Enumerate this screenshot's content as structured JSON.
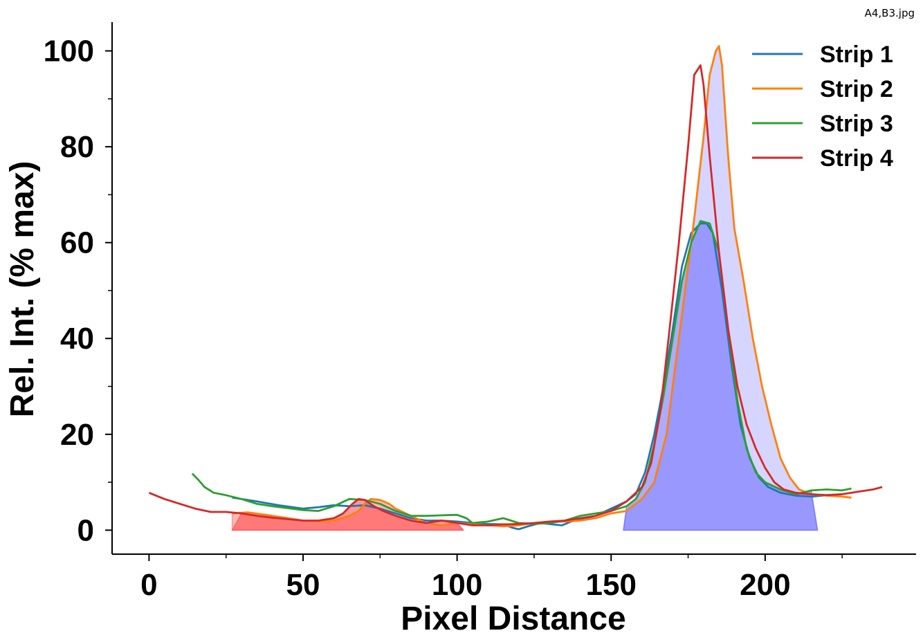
{
  "file_label": "A4,B3.jpg",
  "chart_data": {
    "type": "line",
    "title": "",
    "xlabel": "Pixel Distance",
    "ylabel": "Rel. Int. (% max)",
    "xlim": [
      -12,
      249
    ],
    "ylim": [
      -5,
      106
    ],
    "xticks": [
      0,
      50,
      100,
      150,
      200
    ],
    "yticks": [
      0,
      20,
      40,
      60,
      80,
      100
    ],
    "xminor": [
      25,
      75,
      125,
      175,
      225
    ],
    "yminor": [
      10,
      30,
      50,
      70,
      90
    ],
    "grid": false,
    "legend": {
      "position": "top-right"
    },
    "series": [
      {
        "name": "Strip 1",
        "color": "#1f77b4",
        "points": [
          [
            27,
            6.8
          ],
          [
            35,
            6.0
          ],
          [
            42,
            5.2
          ],
          [
            50,
            4.5
          ],
          [
            55,
            4.8
          ],
          [
            60,
            5.2
          ],
          [
            65,
            5.0
          ],
          [
            70,
            5.2
          ],
          [
            75,
            4.5
          ],
          [
            80,
            3.5
          ],
          [
            85,
            2.5
          ],
          [
            90,
            2.0
          ],
          [
            95,
            2.0
          ],
          [
            100,
            1.8
          ],
          [
            105,
            1.5
          ],
          [
            110,
            1.3
          ],
          [
            115,
            1.2
          ],
          [
            118,
            0.5
          ],
          [
            120,
            0.2
          ],
          [
            123,
            0.8
          ],
          [
            127,
            1.5
          ],
          [
            131,
            1.2
          ],
          [
            134,
            1.0
          ],
          [
            137,
            1.8
          ],
          [
            140,
            2.2
          ],
          [
            145,
            3.0
          ],
          [
            150,
            4.5
          ],
          [
            155,
            6.0
          ],
          [
            158,
            7.5
          ],
          [
            161,
            12
          ],
          [
            164,
            20
          ],
          [
            167,
            30
          ],
          [
            170,
            42
          ],
          [
            173,
            55
          ],
          [
            176,
            62
          ],
          [
            179,
            64
          ],
          [
            181,
            64
          ],
          [
            183,
            62
          ],
          [
            186,
            50
          ],
          [
            189,
            35
          ],
          [
            192,
            22
          ],
          [
            195,
            15
          ],
          [
            198,
            11
          ],
          [
            201,
            9
          ],
          [
            205,
            7.8
          ],
          [
            210,
            7.2
          ],
          [
            215,
            7.0
          ],
          [
            220,
            7.3
          ],
          [
            225,
            7.5
          ]
        ]
      },
      {
        "name": "Strip 2",
        "color": "#ff7f0e",
        "points": [
          [
            27,
            3.5
          ],
          [
            32,
            3.7
          ],
          [
            38,
            3.2
          ],
          [
            45,
            2.5
          ],
          [
            50,
            2.0
          ],
          [
            55,
            1.8
          ],
          [
            60,
            2.0
          ],
          [
            65,
            3.0
          ],
          [
            68,
            4.0
          ],
          [
            70,
            5.5
          ],
          [
            72,
            6.5
          ],
          [
            75,
            6.3
          ],
          [
            78,
            5.5
          ],
          [
            80,
            4.5
          ],
          [
            85,
            3.0
          ],
          [
            90,
            1.5
          ],
          [
            95,
            1.0
          ],
          [
            100,
            1.5
          ],
          [
            105,
            1.2
          ],
          [
            110,
            1.0
          ],
          [
            115,
            0.8
          ],
          [
            120,
            1.0
          ],
          [
            125,
            1.5
          ],
          [
            130,
            1.7
          ],
          [
            135,
            1.8
          ],
          [
            140,
            2.0
          ],
          [
            145,
            2.5
          ],
          [
            150,
            3.5
          ],
          [
            155,
            4.0
          ],
          [
            160,
            6.5
          ],
          [
            164,
            10
          ],
          [
            168,
            20
          ],
          [
            171,
            35
          ],
          [
            174,
            50
          ],
          [
            177,
            65
          ],
          [
            180,
            82
          ],
          [
            182,
            95
          ],
          [
            184,
            100
          ],
          [
            185,
            101
          ],
          [
            186,
            97
          ],
          [
            188,
            78
          ],
          [
            190,
            63
          ],
          [
            193,
            52
          ],
          [
            196,
            40
          ],
          [
            199,
            30
          ],
          [
            202,
            22
          ],
          [
            205,
            15
          ],
          [
            208,
            11
          ],
          [
            211,
            8.5
          ],
          [
            215,
            7.5
          ],
          [
            220,
            7.2
          ],
          [
            225,
            7.0
          ],
          [
            228,
            6.8
          ]
        ]
      },
      {
        "name": "Strip 3",
        "color": "#2ca02c",
        "points": [
          [
            14,
            11.8
          ],
          [
            16,
            10.5
          ],
          [
            18,
            9.0
          ],
          [
            21,
            7.8
          ],
          [
            25,
            7.3
          ],
          [
            30,
            6.5
          ],
          [
            35,
            5.5
          ],
          [
            40,
            5.0
          ],
          [
            45,
            4.6
          ],
          [
            50,
            4.2
          ],
          [
            55,
            4.0
          ],
          [
            60,
            5.0
          ],
          [
            65,
            6.5
          ],
          [
            70,
            6.3
          ],
          [
            75,
            5.5
          ],
          [
            80,
            4.0
          ],
          [
            85,
            3.0
          ],
          [
            90,
            3.0
          ],
          [
            95,
            3.1
          ],
          [
            100,
            3.2
          ],
          [
            103,
            2.5
          ],
          [
            105,
            1.5
          ],
          [
            110,
            1.8
          ],
          [
            115,
            2.5
          ],
          [
            120,
            1.5
          ],
          [
            125,
            1.3
          ],
          [
            130,
            1.5
          ],
          [
            135,
            2.0
          ],
          [
            140,
            3.0
          ],
          [
            145,
            3.5
          ],
          [
            150,
            4.0
          ],
          [
            155,
            5.0
          ],
          [
            158,
            6.5
          ],
          [
            161,
            10
          ],
          [
            164,
            18
          ],
          [
            167,
            28
          ],
          [
            170,
            40
          ],
          [
            173,
            52
          ],
          [
            176,
            60
          ],
          [
            179,
            64.5
          ],
          [
            182,
            64
          ],
          [
            185,
            58
          ],
          [
            188,
            42
          ],
          [
            191,
            27
          ],
          [
            194,
            17
          ],
          [
            197,
            12
          ],
          [
            200,
            10
          ],
          [
            205,
            8.5
          ],
          [
            210,
            7.5
          ],
          [
            215,
            8.3
          ],
          [
            220,
            8.5
          ],
          [
            225,
            8.3
          ],
          [
            228,
            8.7
          ]
        ]
      },
      {
        "name": "Strip 4",
        "color": "#d62728",
        "points": [
          [
            0,
            7.8
          ],
          [
            5,
            6.5
          ],
          [
            10,
            5.5
          ],
          [
            15,
            4.5
          ],
          [
            20,
            3.8
          ],
          [
            25,
            3.8
          ],
          [
            30,
            3.5
          ],
          [
            35,
            3.0
          ],
          [
            40,
            2.6
          ],
          [
            45,
            2.3
          ],
          [
            50,
            2.0
          ],
          [
            55,
            2.0
          ],
          [
            60,
            2.5
          ],
          [
            63,
            3.5
          ],
          [
            66,
            5.5
          ],
          [
            68,
            6.5
          ],
          [
            70,
            6.3
          ],
          [
            73,
            5.0
          ],
          [
            76,
            4.0
          ],
          [
            80,
            3.0
          ],
          [
            85,
            2.0
          ],
          [
            90,
            1.5
          ],
          [
            95,
            2.0
          ],
          [
            100,
            1.5
          ],
          [
            105,
            1.0
          ],
          [
            110,
            1.0
          ],
          [
            115,
            1.2
          ],
          [
            120,
            1.3
          ],
          [
            125,
            1.5
          ],
          [
            130,
            1.8
          ],
          [
            135,
            2.0
          ],
          [
            140,
            2.5
          ],
          [
            145,
            3.0
          ],
          [
            150,
            4.0
          ],
          [
            155,
            6.0
          ],
          [
            160,
            9
          ],
          [
            163,
            14
          ],
          [
            166,
            25
          ],
          [
            169,
            42
          ],
          [
            172,
            60
          ],
          [
            175,
            80
          ],
          [
            177,
            95
          ],
          [
            179,
            97
          ],
          [
            180,
            93
          ],
          [
            182,
            78
          ],
          [
            185,
            58
          ],
          [
            188,
            42
          ],
          [
            191,
            30
          ],
          [
            194,
            22
          ],
          [
            197,
            17
          ],
          [
            200,
            13
          ],
          [
            203,
            10
          ],
          [
            206,
            8.5
          ],
          [
            210,
            7.8
          ],
          [
            215,
            7.5
          ],
          [
            220,
            7.3
          ],
          [
            225,
            7.5
          ],
          [
            230,
            8.0
          ],
          [
            235,
            8.5
          ],
          [
            238,
            9.0
          ]
        ]
      }
    ],
    "shaded_regions": [
      {
        "x_range": [
          27,
          102
        ],
        "color": "#ff6666",
        "opacity": 0.45,
        "follows_series": "Strip 2"
      },
      {
        "x_range": [
          27,
          102
        ],
        "color": "#ff4444",
        "opacity": 0.55,
        "follows_series": "Strip 4"
      },
      {
        "x_range": [
          154,
          217
        ],
        "color": "#8888ff",
        "opacity": 0.35,
        "follows_series": "Strip 2"
      },
      {
        "x_range": [
          154,
          217
        ],
        "color": "#6666ff",
        "opacity": 0.55,
        "follows_series": "Strip 3"
      }
    ]
  }
}
